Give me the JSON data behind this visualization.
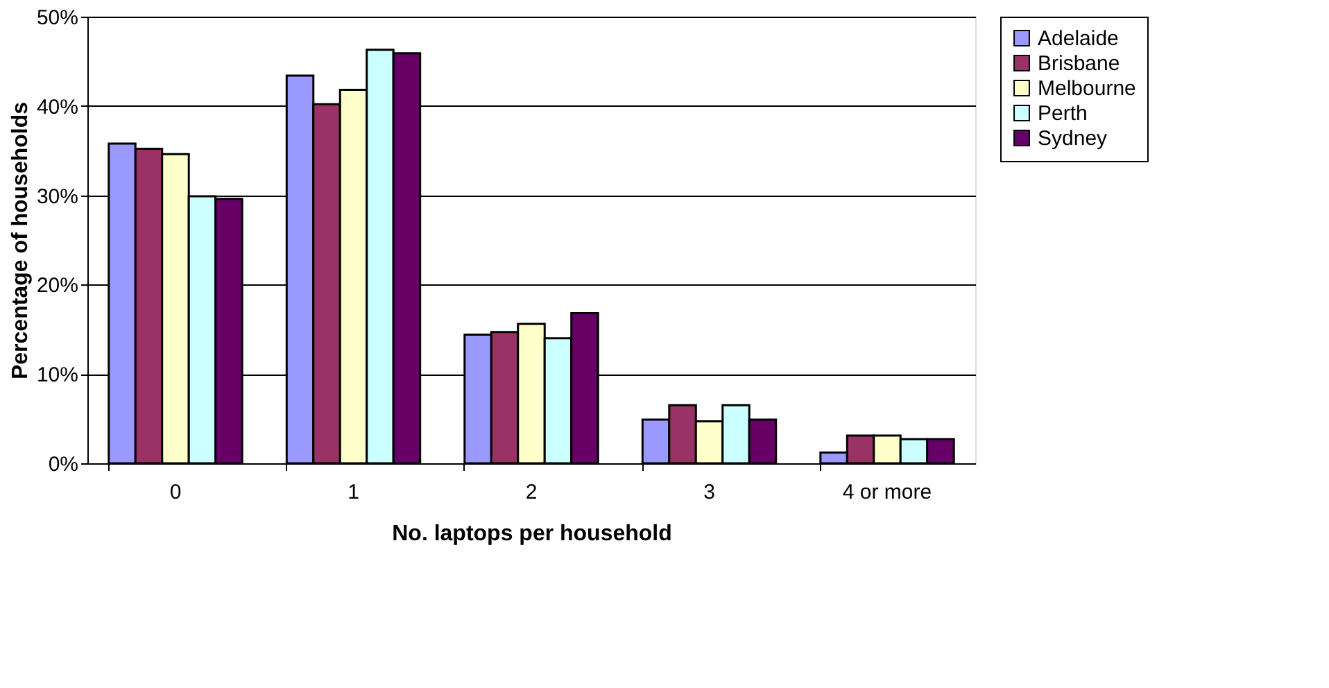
{
  "chart_data": {
    "type": "bar",
    "xlabel": "No. laptops per household",
    "ylabel": "Percentage of households",
    "categories": [
      "0",
      "1",
      "2",
      "3",
      "4 or more"
    ],
    "series": [
      {
        "name": "Adelaide",
        "color": "#9999ff",
        "values": [
          35.8,
          43.4,
          14.4,
          4.9,
          1.2
        ]
      },
      {
        "name": "Brisbane",
        "color": "#993366",
        "values": [
          35.2,
          40.2,
          14.7,
          6.5,
          3.1
        ]
      },
      {
        "name": "Melbourne",
        "color": "#ffffcc",
        "values": [
          34.6,
          41.8,
          15.6,
          4.7,
          3.1
        ]
      },
      {
        "name": "Perth",
        "color": "#ccffff",
        "values": [
          29.9,
          46.3,
          14.0,
          6.5,
          2.7
        ]
      },
      {
        "name": "Sydney",
        "color": "#660066",
        "values": [
          29.6,
          45.9,
          16.8,
          4.9,
          2.7
        ]
      }
    ],
    "ylim": [
      0,
      50
    ],
    "yticks": [
      {
        "value": 0,
        "label": "0%"
      },
      {
        "value": 10,
        "label": "10%"
      },
      {
        "value": 20,
        "label": "20%"
      },
      {
        "value": 30,
        "label": "30%"
      },
      {
        "value": 40,
        "label": "40%"
      },
      {
        "value": 50,
        "label": "50%"
      }
    ],
    "grid": "y",
    "legend": "right"
  }
}
